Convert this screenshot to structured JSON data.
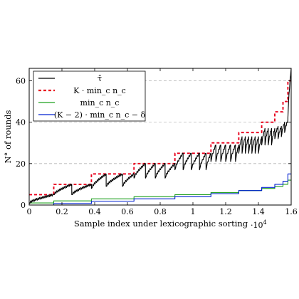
{
  "chart_data": {
    "type": "line",
    "xlabel": "Sample index under lexicographic sorting",
    "ylabel": "N° of rounds",
    "x_multiplier_label": "·10",
    "x_multiplier_exp": "4",
    "xlim": [
      0,
      1.6
    ],
    "ylim": [
      0,
      66
    ],
    "xticks": [
      {
        "v": 0,
        "label": "0"
      },
      {
        "v": 0.2,
        "label": "0.2"
      },
      {
        "v": 0.4,
        "label": "0.4"
      },
      {
        "v": 0.6,
        "label": "0.6"
      },
      {
        "v": 0.8,
        "label": "0.8"
      },
      {
        "v": 1.0,
        "label": "1"
      },
      {
        "v": 1.2,
        "label": "1.2"
      },
      {
        "v": 1.4,
        "label": "1.4"
      },
      {
        "v": 1.6,
        "label": "1.6"
      }
    ],
    "yticks": [
      {
        "v": 0,
        "label": "0"
      },
      {
        "v": 20,
        "label": "20"
      },
      {
        "v": 40,
        "label": "40"
      },
      {
        "v": 60,
        "label": "60"
      }
    ],
    "grid": "horizontal dashed",
    "legend_position": "top-left",
    "series": [
      {
        "name": "τ̂",
        "color": "#000000",
        "style": "solid",
        "kind": "sawtooth",
        "blocks": [
          {
            "x0": 0.0,
            "x1": 0.15,
            "lo": 1,
            "hi": 5
          },
          {
            "x0": 0.15,
            "x1": 0.26,
            "lo": 5,
            "hi": 10
          },
          {
            "x0": 0.26,
            "x1": 0.38,
            "lo": 5,
            "hi": 10
          },
          {
            "x0": 0.38,
            "x1": 0.47,
            "lo": 8,
            "hi": 15
          },
          {
            "x0": 0.47,
            "x1": 0.57,
            "lo": 9,
            "hi": 15
          },
          {
            "x0": 0.57,
            "x1": 0.64,
            "lo": 9,
            "hi": 15
          },
          {
            "x0": 0.64,
            "x1": 0.71,
            "lo": 13,
            "hi": 20
          },
          {
            "x0": 0.71,
            "x1": 0.77,
            "lo": 13,
            "hi": 20
          },
          {
            "x0": 0.77,
            "x1": 0.83,
            "lo": 13,
            "hi": 20
          },
          {
            "x0": 0.83,
            "x1": 0.89,
            "lo": 13,
            "hi": 20
          },
          {
            "x0": 0.89,
            "x1": 0.94,
            "lo": 17,
            "hi": 25
          },
          {
            "x0": 0.94,
            "x1": 0.99,
            "lo": 17,
            "hi": 25
          },
          {
            "x0": 0.99,
            "x1": 1.04,
            "lo": 17,
            "hi": 25
          },
          {
            "x0": 1.04,
            "x1": 1.08,
            "lo": 17,
            "hi": 25
          },
          {
            "x0": 1.08,
            "x1": 1.11,
            "lo": 17,
            "hi": 25
          },
          {
            "x0": 1.11,
            "x1": 1.14,
            "lo": 21,
            "hi": 29
          },
          {
            "x0": 1.14,
            "x1": 1.17,
            "lo": 21,
            "hi": 29
          },
          {
            "x0": 1.17,
            "x1": 1.2,
            "lo": 21,
            "hi": 29
          },
          {
            "x0": 1.2,
            "x1": 1.23,
            "lo": 21,
            "hi": 29
          },
          {
            "x0": 1.23,
            "x1": 1.26,
            "lo": 21,
            "hi": 29
          },
          {
            "x0": 1.26,
            "x1": 1.28,
            "lo": 21,
            "hi": 29
          },
          {
            "x0": 1.28,
            "x1": 1.3,
            "lo": 25,
            "hi": 33
          },
          {
            "x0": 1.3,
            "x1": 1.32,
            "lo": 25,
            "hi": 33
          },
          {
            "x0": 1.32,
            "x1": 1.34,
            "lo": 25,
            "hi": 33
          },
          {
            "x0": 1.34,
            "x1": 1.36,
            "lo": 25,
            "hi": 33
          },
          {
            "x0": 1.36,
            "x1": 1.38,
            "lo": 25,
            "hi": 33
          },
          {
            "x0": 1.38,
            "x1": 1.4,
            "lo": 25,
            "hi": 33
          },
          {
            "x0": 1.4,
            "x1": 1.42,
            "lo": 25,
            "hi": 33
          },
          {
            "x0": 1.42,
            "x1": 1.44,
            "lo": 29,
            "hi": 37
          },
          {
            "x0": 1.44,
            "x1": 1.46,
            "lo": 29,
            "hi": 37
          },
          {
            "x0": 1.46,
            "x1": 1.48,
            "lo": 29,
            "hi": 37
          },
          {
            "x0": 1.48,
            "x1": 1.5,
            "lo": 29,
            "hi": 37
          },
          {
            "x0": 1.5,
            "x1": 1.52,
            "lo": 32,
            "hi": 38
          },
          {
            "x0": 1.52,
            "x1": 1.54,
            "lo": 32,
            "hi": 38
          },
          {
            "x0": 1.54,
            "x1": 1.56,
            "lo": 33,
            "hi": 40
          },
          {
            "x0": 1.56,
            "x1": 1.58,
            "lo": 35,
            "hi": 41
          },
          {
            "x0": 1.58,
            "x1": 1.6,
            "lo": 42,
            "hi": 66
          }
        ]
      },
      {
        "name": "K · min_c n_c",
        "color": "#e8001c",
        "style": "dashed",
        "kind": "step",
        "points": [
          [
            0,
            5
          ],
          [
            0.15,
            5
          ],
          [
            0.15,
            10
          ],
          [
            0.38,
            10
          ],
          [
            0.38,
            15
          ],
          [
            0.64,
            15
          ],
          [
            0.64,
            20
          ],
          [
            0.89,
            20
          ],
          [
            0.89,
            25
          ],
          [
            1.11,
            25
          ],
          [
            1.11,
            30
          ],
          [
            1.28,
            30
          ],
          [
            1.28,
            35
          ],
          [
            1.42,
            35
          ],
          [
            1.42,
            40
          ],
          [
            1.5,
            40
          ],
          [
            1.5,
            45
          ],
          [
            1.55,
            45
          ],
          [
            1.55,
            50
          ],
          [
            1.58,
            50
          ],
          [
            1.58,
            60
          ],
          [
            1.6,
            60
          ]
        ]
      },
      {
        "name": "min_c n_c",
        "color": "#1fa01f",
        "style": "solid",
        "kind": "step",
        "points": [
          [
            0,
            1
          ],
          [
            0.15,
            1
          ],
          [
            0.15,
            2
          ],
          [
            0.38,
            2
          ],
          [
            0.38,
            3
          ],
          [
            0.64,
            3
          ],
          [
            0.64,
            4
          ],
          [
            0.89,
            4
          ],
          [
            0.89,
            5
          ],
          [
            1.11,
            5
          ],
          [
            1.11,
            6
          ],
          [
            1.28,
            6
          ],
          [
            1.28,
            7
          ],
          [
            1.42,
            7
          ],
          [
            1.42,
            8
          ],
          [
            1.5,
            8
          ],
          [
            1.5,
            9
          ],
          [
            1.55,
            9
          ],
          [
            1.55,
            10
          ],
          [
            1.58,
            10
          ],
          [
            1.58,
            12
          ],
          [
            1.6,
            12
          ]
        ]
      },
      {
        "name": "(K − 2) · min_c n_c − δ",
        "color": "#0020d0",
        "style": "solid",
        "kind": "step",
        "points": [
          [
            0,
            0
          ],
          [
            0.15,
            0
          ],
          [
            0.15,
            0.7
          ],
          [
            0.38,
            0.7
          ],
          [
            0.38,
            1.8
          ],
          [
            0.64,
            1.8
          ],
          [
            0.64,
            3
          ],
          [
            0.89,
            3
          ],
          [
            0.89,
            4
          ],
          [
            1.11,
            4
          ],
          [
            1.11,
            5.5
          ],
          [
            1.28,
            5.5
          ],
          [
            1.28,
            7
          ],
          [
            1.42,
            7
          ],
          [
            1.42,
            8.5
          ],
          [
            1.5,
            8.5
          ],
          [
            1.5,
            10
          ],
          [
            1.55,
            10
          ],
          [
            1.55,
            11.5
          ],
          [
            1.58,
            11.5
          ],
          [
            1.58,
            15
          ],
          [
            1.6,
            15
          ]
        ]
      }
    ]
  }
}
